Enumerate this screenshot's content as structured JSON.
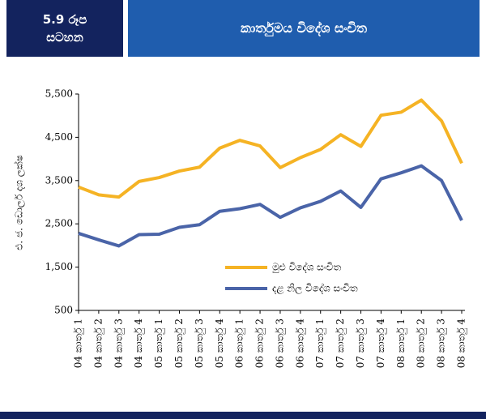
{
  "header": {
    "badge_number": "5.9 රූප",
    "badge_word": "සටහන",
    "title": "කාර්තුමය විදේශ සංචිත"
  },
  "chart_data": {
    "type": "line",
    "y_label": "එ. ජ. ඩොලර් දශ ලක්ෂ",
    "categories": [
      "04 කාර්තු 1",
      "04 කාර්තු 2",
      "04 කාර්තු 3",
      "04 කාර්තු 4",
      "05 කාර්තු 1",
      "05 කාර්තු 2",
      "05 කාර්තු 3",
      "05 කාර්තු 4",
      "06 කාර්තු 1",
      "06 කාර්තු 2",
      "06 කාර්තු 3",
      "06 කාර්තු 4",
      "07 කාර්තු 1",
      "07 කාර්තු 2",
      "07 කාර්තු 3",
      "07 කාර්තු 4",
      "08 කාර්තු 1",
      "08 කාර්තු 2",
      "08 කාර්තු 3",
      "08 කාර්තු 4"
    ],
    "series": [
      {
        "name": "මුළු විදේශ සංචිත",
        "color": "#f5b324",
        "values": [
          3350,
          3170,
          3120,
          3480,
          3570,
          3720,
          3810,
          4250,
          4430,
          4300,
          3800,
          4030,
          4220,
          4560,
          4290,
          5010,
          5080,
          5360,
          4880,
          3900
        ]
      },
      {
        "name": "දළ නිල විදේශ සංචිත",
        "color": "#4a64a8",
        "values": [
          2280,
          2130,
          1990,
          2250,
          2260,
          2420,
          2480,
          2790,
          2850,
          2950,
          2650,
          2870,
          3020,
          3260,
          2880,
          3540,
          3680,
          3840,
          3500,
          2580
        ]
      }
    ],
    "ylim": [
      500,
      5500
    ],
    "yticks": [
      {
        "value": 500,
        "label": "500"
      },
      {
        "value": 1500,
        "label": "1,500"
      },
      {
        "value": 2500,
        "label": "2,500"
      },
      {
        "value": 3500,
        "label": "3,500"
      },
      {
        "value": 4500,
        "label": "4,500"
      },
      {
        "value": 5500,
        "label": "5,500"
      }
    ]
  }
}
